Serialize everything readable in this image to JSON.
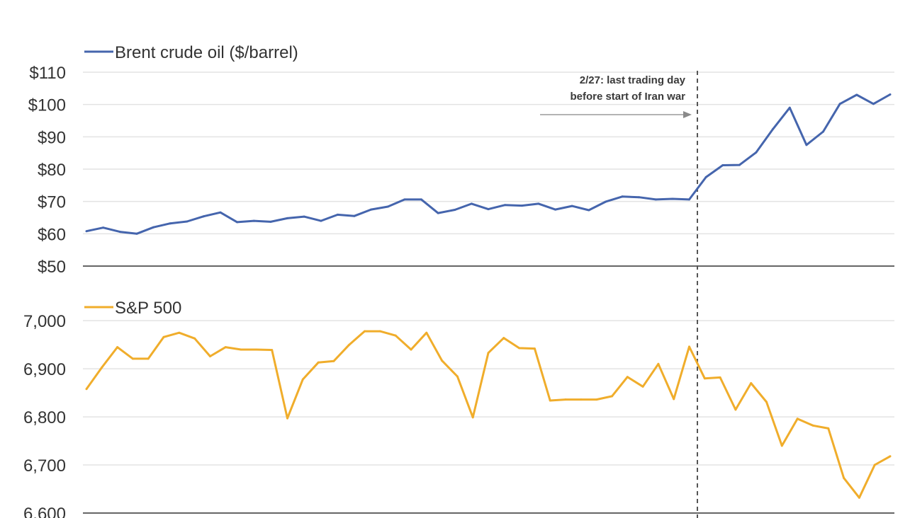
{
  "chart_data": [
    {
      "type": "line",
      "series": [
        {
          "name": "Brent crude oil ($/barrel)",
          "color": "#4565ad",
          "values": [
            60.8,
            61.9,
            60.6,
            60.0,
            62.0,
            63.2,
            63.8,
            65.4,
            66.6,
            63.6,
            64.0,
            63.7,
            64.8,
            65.3,
            64.0,
            65.9,
            65.5,
            67.5,
            68.4,
            70.6,
            70.6,
            66.4,
            67.4,
            69.3,
            67.6,
            68.9,
            68.7,
            69.3,
            67.5,
            68.6,
            67.3,
            69.9,
            71.5,
            71.3,
            70.6,
            70.8,
            70.6,
            77.5,
            81.2,
            81.3,
            85.2,
            92.4,
            99.0,
            87.5,
            91.6,
            100.2,
            103.0,
            100.2,
            103.1
          ]
        }
      ],
      "yticks": [
        "$110",
        "$100",
        "$90",
        "$80",
        "$70",
        "$60",
        "$50"
      ],
      "ylim": [
        50,
        110
      ],
      "legend": "top-left",
      "grid": true
    },
    {
      "type": "line",
      "series": [
        {
          "name": "S&P 500",
          "color": "#f0ad2b",
          "values": [
            6858,
            6903,
            6945,
            6921,
            6921,
            6966,
            6975,
            6963,
            6926,
            6945,
            6940,
            6940,
            6939,
            6797,
            6878,
            6913,
            6916,
            6950,
            6978,
            6978,
            6969,
            6940,
            6975,
            6917,
            6884,
            6799,
            6933,
            6964,
            6943,
            6942,
            6834,
            6836,
            6836,
            6836,
            6843,
            6883,
            6863,
            6910,
            6837,
            6946,
            6880,
            6882,
            6815,
            6870,
            6831,
            6740,
            6796,
            6782,
            6776,
            6673,
            6632,
            6700,
            6718
          ]
        }
      ],
      "yticks": [
        "7,000",
        "6,900",
        "6,800",
        "6,700",
        "6,600"
      ],
      "ylim": [
        6600,
        7040
      ],
      "legend": "top-left",
      "grid": true
    }
  ],
  "annotation": {
    "line1": "2/27: last trading day",
    "line2": "before start of Iran war"
  }
}
